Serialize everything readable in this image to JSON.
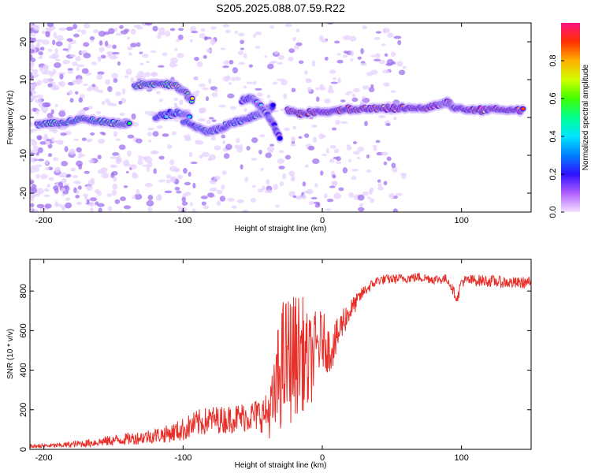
{
  "title": "S205.2025.088.07.59.R22",
  "chart_data": [
    {
      "type": "heatmap",
      "xlabel": "Height of straight line (km)",
      "ylabel": "Frequency (Hz)",
      "xlim": [
        -210,
        150
      ],
      "ylim": [
        -25,
        25
      ],
      "x_ticks": [
        -200,
        -100,
        0,
        100
      ],
      "y_ticks": [
        -20,
        -10,
        0,
        10,
        20
      ],
      "colorbar": {
        "label": "Normalized spectral amplitude",
        "range": [
          0,
          1
        ],
        "ticks": [
          0.0,
          0.2,
          0.4,
          0.6,
          0.8
        ],
        "colors": [
          "#f2e0ff",
          "#8a2be2",
          "#0000ff",
          "#00e5ff",
          "#00ff40",
          "#ffee00",
          "#ff4000",
          "#ff1493"
        ]
      },
      "ridges": [
        {
          "x": [
            -205,
            -195,
            -185,
            -175,
            -165,
            -155,
            -145,
            -138
          ],
          "y": [
            -2,
            -1.5,
            -1.5,
            -0.5,
            -0.8,
            -1.2,
            -1.8,
            -1.5
          ],
          "amp": 0.55
        },
        {
          "x": [
            -135,
            -125,
            -115,
            -105,
            -98,
            -93
          ],
          "y": [
            8.5,
            8.8,
            9,
            8.5,
            6.5,
            4
          ],
          "amp": 0.6
        },
        {
          "x": [
            -120,
            -110,
            -100,
            -95
          ],
          "y": [
            0,
            1,
            1,
            0
          ],
          "amp": 0.4
        },
        {
          "x": [
            -100,
            -90,
            -82,
            -75,
            -68,
            -60,
            -52,
            -45,
            -40,
            -35
          ],
          "y": [
            -1,
            -2.5,
            -4,
            -3,
            -2,
            -1,
            0,
            1,
            2,
            3
          ],
          "amp": 0.4
        },
        {
          "x": [
            -58,
            -50,
            -45,
            -40,
            -35,
            -30
          ],
          "y": [
            4.5,
            5,
            3,
            1,
            -2,
            -6
          ],
          "amp": 0.3
        },
        {
          "x": [
            -25,
            -15,
            -5,
            5,
            15,
            25,
            35,
            45,
            55,
            65,
            75,
            85,
            90,
            95,
            105,
            115,
            125,
            135,
            145
          ],
          "y": [
            2,
            1,
            1.5,
            1.5,
            2,
            2,
            2.5,
            2.5,
            2.5,
            2.5,
            2.5,
            3.5,
            4,
            2.5,
            2,
            2,
            2.2,
            2,
            2
          ],
          "amp": 0.92
        }
      ]
    },
    {
      "type": "line",
      "xlabel": "Height of straight line (km)",
      "ylabel": "SNR (10 * v/v)",
      "xlim": [
        -210,
        150
      ],
      "ylim": [
        0,
        960
      ],
      "x_ticks": [
        -200,
        -100,
        0,
        100
      ],
      "y_ticks": [
        0,
        200,
        400,
        600,
        800
      ],
      "series": [
        {
          "color": "#e8302a",
          "x": [
            -210,
            -190,
            -170,
            -150,
            -130,
            -110,
            -100,
            -90,
            -80,
            -70,
            -60,
            -50,
            -40,
            -35,
            -30,
            -25,
            -20,
            -15,
            -10,
            -5,
            0,
            5,
            10,
            15,
            20,
            25,
            30,
            40,
            50,
            60,
            70,
            80,
            90,
            97,
            100,
            110,
            120,
            130,
            140,
            150
          ],
          "y": [
            15,
            20,
            30,
            45,
            60,
            80,
            100,
            130,
            150,
            150,
            160,
            170,
            180,
            220,
            420,
            450,
            470,
            500,
            420,
            500,
            560,
            500,
            550,
            650,
            700,
            750,
            800,
            855,
            860,
            865,
            870,
            860,
            860,
            760,
            850,
            855,
            850,
            845,
            840,
            845
          ],
          "spread": [
            10,
            12,
            20,
            28,
            35,
            45,
            60,
            70,
            70,
            70,
            75,
            80,
            100,
            200,
            330,
            340,
            320,
            300,
            250,
            200,
            150,
            120,
            100,
            80,
            60,
            40,
            30,
            25,
            25,
            25,
            25,
            25,
            25,
            25,
            30,
            30,
            30,
            30,
            30,
            30
          ]
        }
      ]
    }
  ]
}
